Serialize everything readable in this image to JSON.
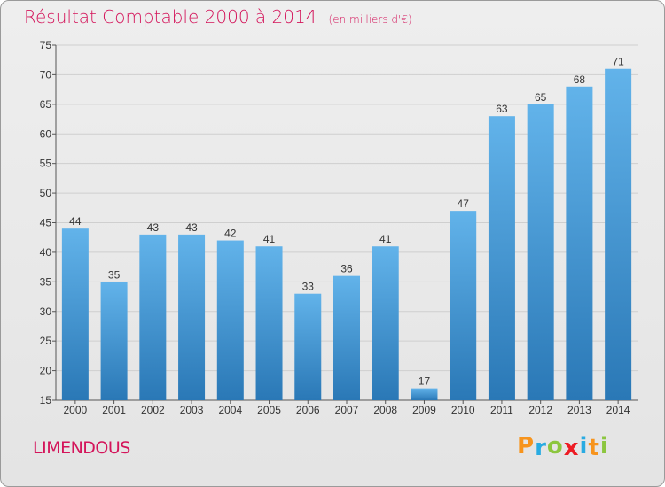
{
  "title": "Résultat Comptable 2000 à 2014",
  "unit_note": "(en milliers d'€)",
  "commune": "LIMENDOUS",
  "brand": {
    "letters": [
      "P",
      "r",
      "o",
      "x",
      "i",
      "t",
      "i"
    ],
    "colors": [
      "#f7941d",
      "#29abe2",
      "#8cc63f",
      "#ed1c24",
      "#29abe2",
      "#f7941d",
      "#8cc63f"
    ]
  },
  "colors": {
    "bar_top": "#62b3ea",
    "bar_bottom": "#2a78b6",
    "grid": "#cfcfcf",
    "title": "#d4145a"
  },
  "chart_data": {
    "type": "bar",
    "title": "Résultat Comptable 2000 à 2014",
    "xlabel": "",
    "ylabel": "",
    "categories": [
      "2000",
      "2001",
      "2002",
      "2003",
      "2004",
      "2005",
      "2006",
      "2007",
      "2008",
      "2009",
      "2010",
      "2011",
      "2012",
      "2013",
      "2014"
    ],
    "values": [
      44,
      35,
      43,
      43,
      42,
      41,
      33,
      36,
      41,
      17,
      47,
      63,
      65,
      68,
      71
    ],
    "ylim": [
      15,
      75
    ],
    "yticks": [
      15,
      20,
      25,
      30,
      35,
      40,
      45,
      50,
      55,
      60,
      65,
      70,
      75
    ],
    "grid": true
  }
}
